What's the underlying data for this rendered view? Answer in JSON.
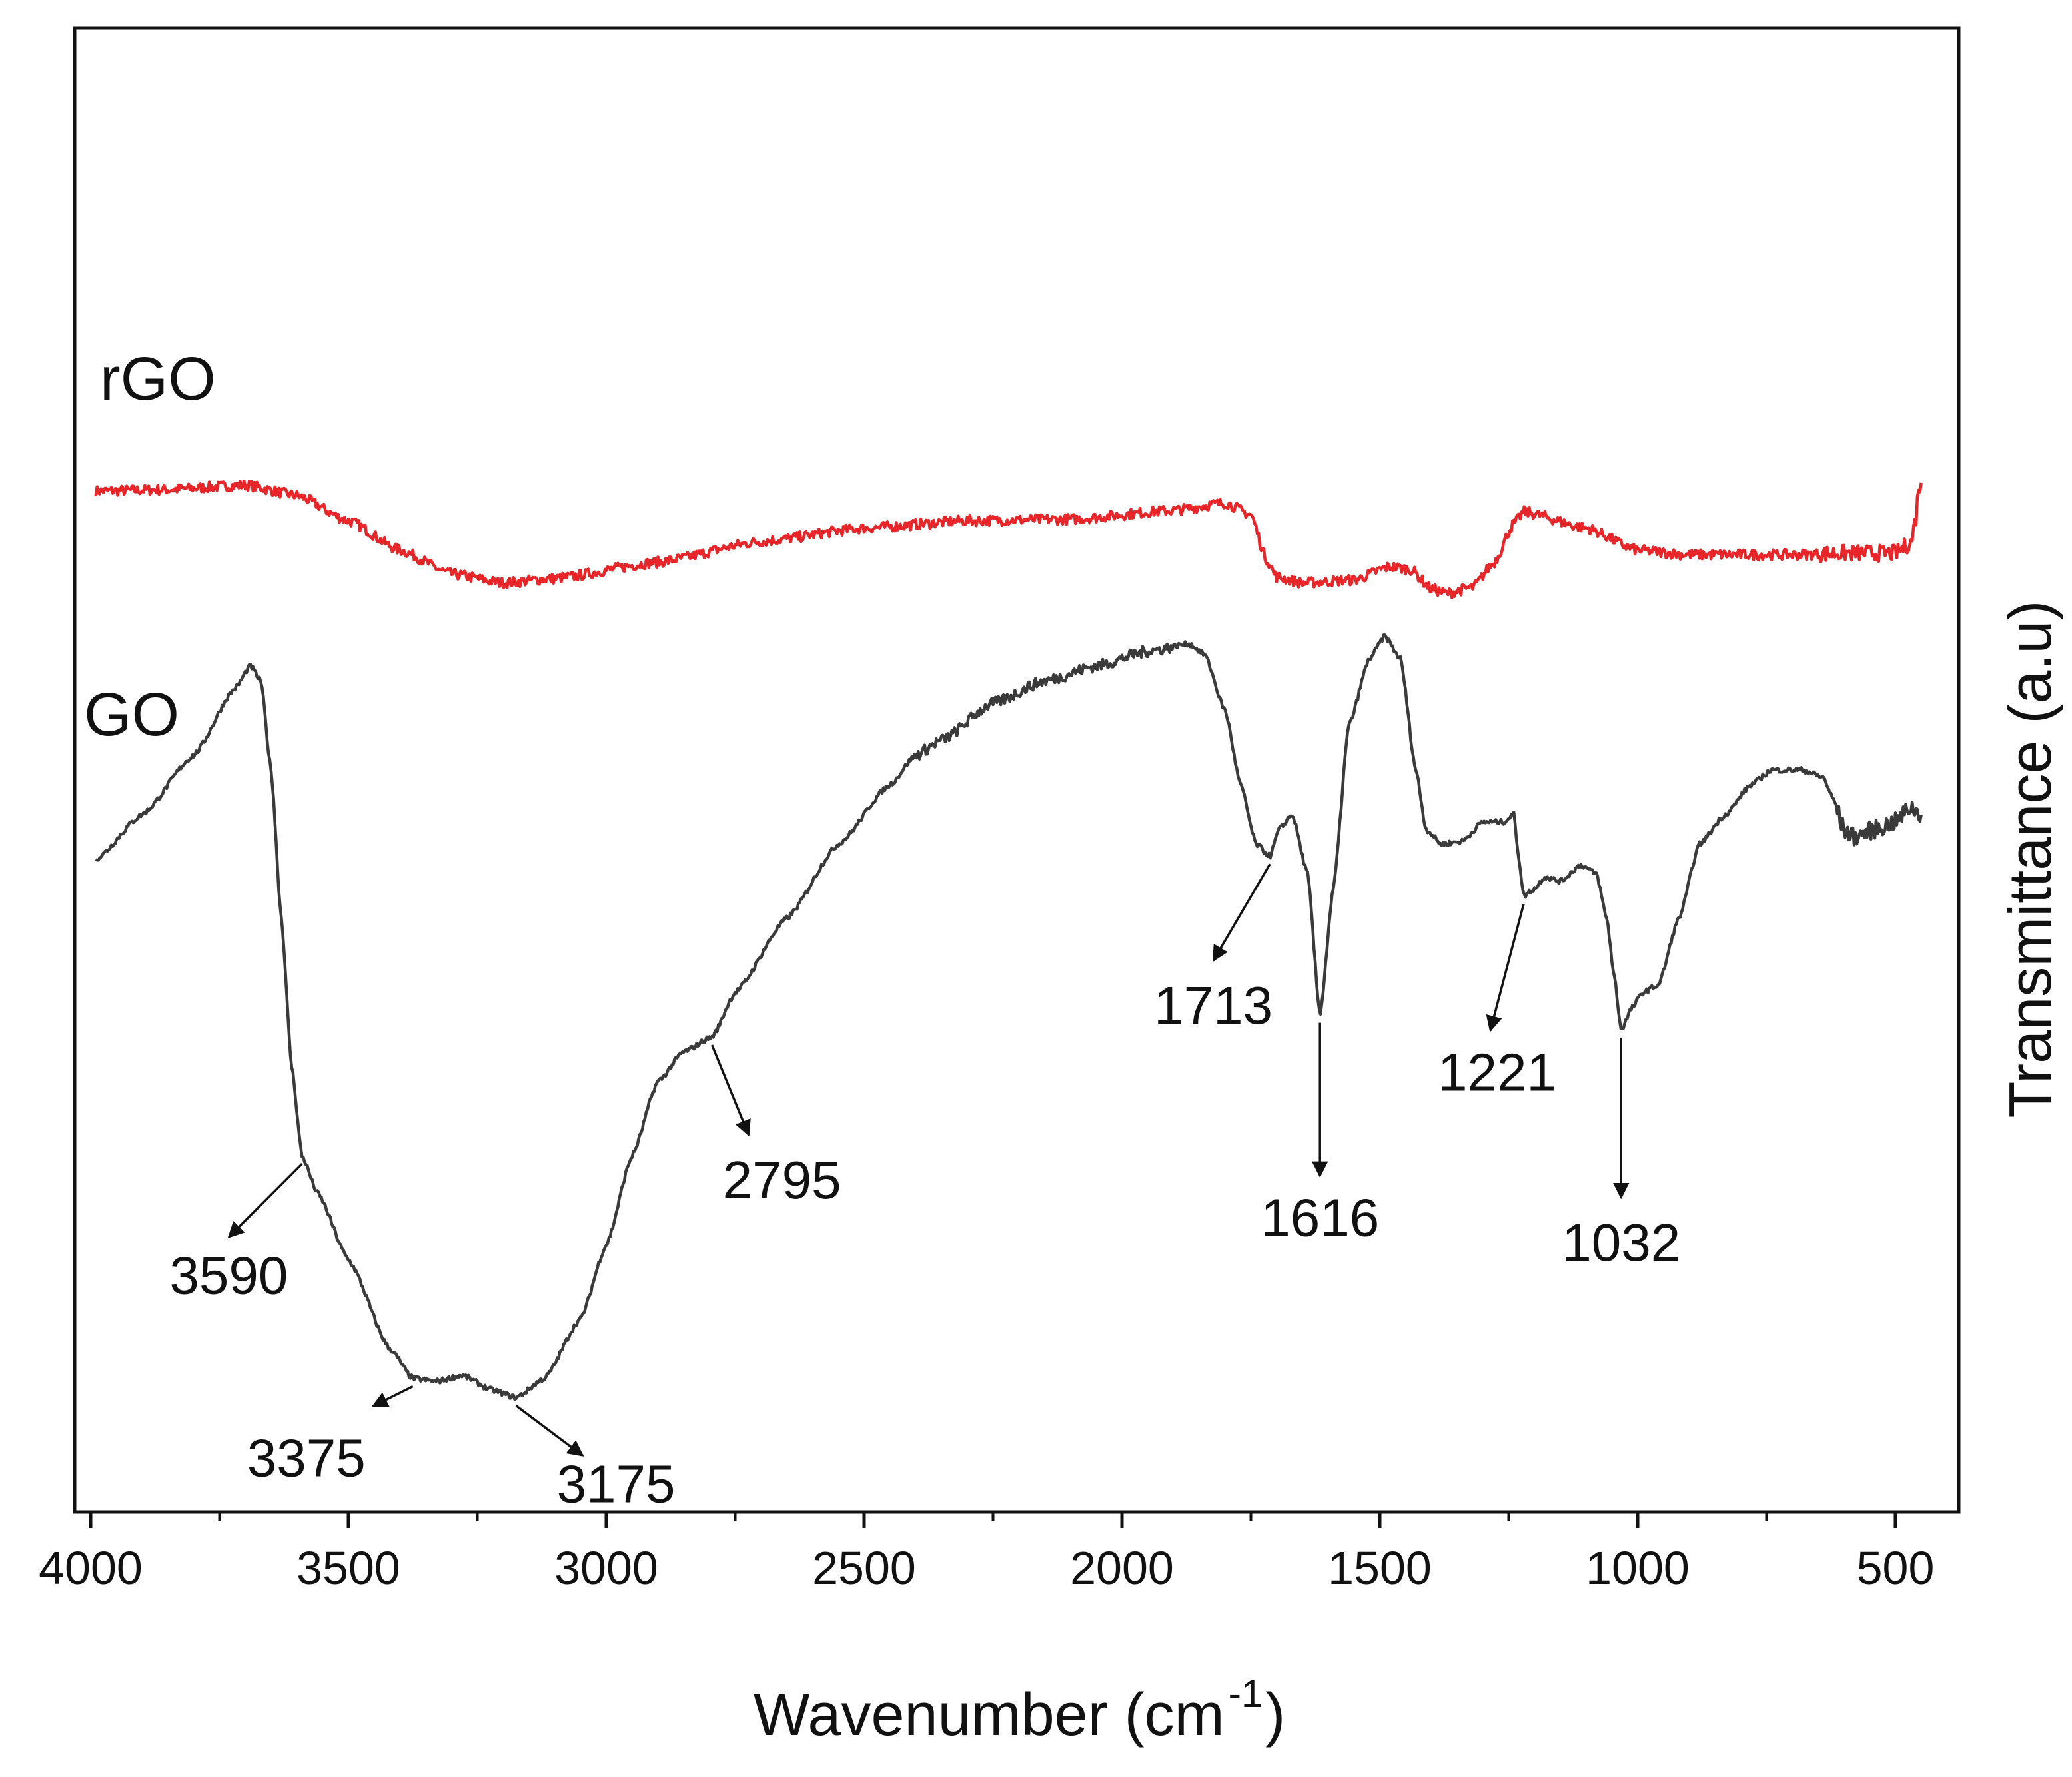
{
  "chart_data": {
    "type": "line",
    "title": "",
    "xlabel": "Wavenumber (cm",
    "xlabel_sup": "-1",
    "xlabel_close": ")",
    "ylabel": "Transmittance (a.u)",
    "xlim": [
      4000,
      400
    ],
    "x_reversed": true,
    "ylim": [
      0,
      100
    ],
    "grid": false,
    "x_ticks": [
      4000,
      3500,
      3000,
      2500,
      2000,
      1500,
      1000,
      500
    ],
    "x_tick_labels": [
      "4000",
      "3500",
      "3000",
      "2500",
      "2000",
      "1500",
      "1000",
      "500"
    ],
    "series": [
      {
        "name": "rGO",
        "label": "rGO",
        "color": "#e8262a",
        "noise": 0.7,
        "points": [
          [
            3990,
            68.8
          ],
          [
            3850,
            68.9
          ],
          [
            3700,
            69.2
          ],
          [
            3600,
            68.5
          ],
          [
            3500,
            66.8
          ],
          [
            3400,
            64.8
          ],
          [
            3300,
            63.2
          ],
          [
            3200,
            62.6
          ],
          [
            3100,
            62.9
          ],
          [
            2900,
            64.0
          ],
          [
            2700,
            65.4
          ],
          [
            2500,
            66.3
          ],
          [
            2300,
            66.8
          ],
          [
            2100,
            66.9
          ],
          [
            1900,
            67.5
          ],
          [
            1800,
            68.0
          ],
          [
            1750,
            67.2
          ],
          [
            1720,
            64.2
          ],
          [
            1700,
            63.0
          ],
          [
            1650,
            62.6
          ],
          [
            1550,
            62.8
          ],
          [
            1480,
            63.7
          ],
          [
            1440,
            63.5
          ],
          [
            1400,
            62.2
          ],
          [
            1370,
            61.9
          ],
          [
            1320,
            62.3
          ],
          [
            1280,
            63.9
          ],
          [
            1240,
            66.6
          ],
          [
            1220,
            67.4
          ],
          [
            1100,
            66.3
          ],
          [
            1000,
            64.8
          ],
          [
            900,
            64.5
          ],
          [
            700,
            64.5
          ],
          [
            600,
            64.6
          ],
          [
            500,
            64.6
          ],
          [
            470,
            65.3
          ],
          [
            460,
            67.0
          ],
          [
            455,
            69.2
          ],
          [
            450,
            69.0
          ]
        ]
      },
      {
        "name": "GO",
        "label": "GO",
        "color": "#3a3a3a",
        "noise": 0.35,
        "points": [
          [
            3990,
            44.0
          ],
          [
            3900,
            47.0
          ],
          [
            3800,
            51.0
          ],
          [
            3720,
            55.5
          ],
          [
            3690,
            57.0
          ],
          [
            3670,
            56.0
          ],
          [
            3650,
            50.0
          ],
          [
            3630,
            40.0
          ],
          [
            3610,
            30.0
          ],
          [
            3590,
            24.0
          ],
          [
            3560,
            21.5
          ],
          [
            3500,
            17.0
          ],
          [
            3420,
            11.0
          ],
          [
            3375,
            9.0
          ],
          [
            3330,
            8.8
          ],
          [
            3280,
            9.2
          ],
          [
            3220,
            8.2
          ],
          [
            3175,
            7.7
          ],
          [
            3120,
            9.0
          ],
          [
            3050,
            13.0
          ],
          [
            3000,
            18.0
          ],
          [
            2950,
            24.0
          ],
          [
            2900,
            29.0
          ],
          [
            2850,
            31.0
          ],
          [
            2795,
            32.0
          ],
          [
            2750,
            35.0
          ],
          [
            2650,
            40.0
          ],
          [
            2550,
            45.0
          ],
          [
            2450,
            49.0
          ],
          [
            2400,
            51.0
          ],
          [
            2350,
            52.0
          ],
          [
            2250,
            54.5
          ],
          [
            2150,
            56.0
          ],
          [
            2050,
            57.0
          ],
          [
            1950,
            58.0
          ],
          [
            1870,
            58.5
          ],
          [
            1840,
            57.8
          ],
          [
            1800,
            54.0
          ],
          [
            1770,
            49.0
          ],
          [
            1740,
            45.0
          ],
          [
            1713,
            44.2
          ],
          [
            1695,
            46.0
          ],
          [
            1670,
            47.0
          ],
          [
            1640,
            43.0
          ],
          [
            1616,
            33.5
          ],
          [
            1590,
            42.0
          ],
          [
            1560,
            53.0
          ],
          [
            1520,
            57.5
          ],
          [
            1490,
            59.0
          ],
          [
            1460,
            57.5
          ],
          [
            1430,
            50.0
          ],
          [
            1410,
            46.0
          ],
          [
            1380,
            45.0
          ],
          [
            1340,
            45.2
          ],
          [
            1300,
            46.5
          ],
          [
            1260,
            46.5
          ],
          [
            1240,
            47.0
          ],
          [
            1230,
            44.0
          ],
          [
            1221,
            41.5
          ],
          [
            1200,
            42.0
          ],
          [
            1180,
            42.8
          ],
          [
            1150,
            42.5
          ],
          [
            1110,
            43.6
          ],
          [
            1080,
            43.0
          ],
          [
            1060,
            40.0
          ],
          [
            1045,
            36.0
          ],
          [
            1032,
            32.5
          ],
          [
            1010,
            34.0
          ],
          [
            990,
            35.0
          ],
          [
            960,
            35.5
          ],
          [
            920,
            40.0
          ],
          [
            880,
            45.0
          ],
          [
            830,
            47.0
          ],
          [
            780,
            49.0
          ],
          [
            740,
            50.0
          ],
          [
            680,
            50.0
          ],
          [
            640,
            49.5
          ],
          [
            620,
            48.0
          ],
          [
            600,
            46.0
          ],
          [
            580,
            45.5
          ],
          [
            540,
            46.0
          ],
          [
            500,
            46.5
          ],
          [
            470,
            47.5
          ],
          [
            450,
            47.0
          ]
        ]
      }
    ],
    "annotations": [
      {
        "label": "3590",
        "x": 3590
      },
      {
        "label": "3375",
        "x": 3375
      },
      {
        "label": "3175",
        "x": 3175
      },
      {
        "label": "2795",
        "x": 2795
      },
      {
        "label": "1713",
        "x": 1713
      },
      {
        "label": "1616",
        "x": 1616
      },
      {
        "label": "1221",
        "x": 1221
      },
      {
        "label": "1032",
        "x": 1032
      }
    ]
  }
}
